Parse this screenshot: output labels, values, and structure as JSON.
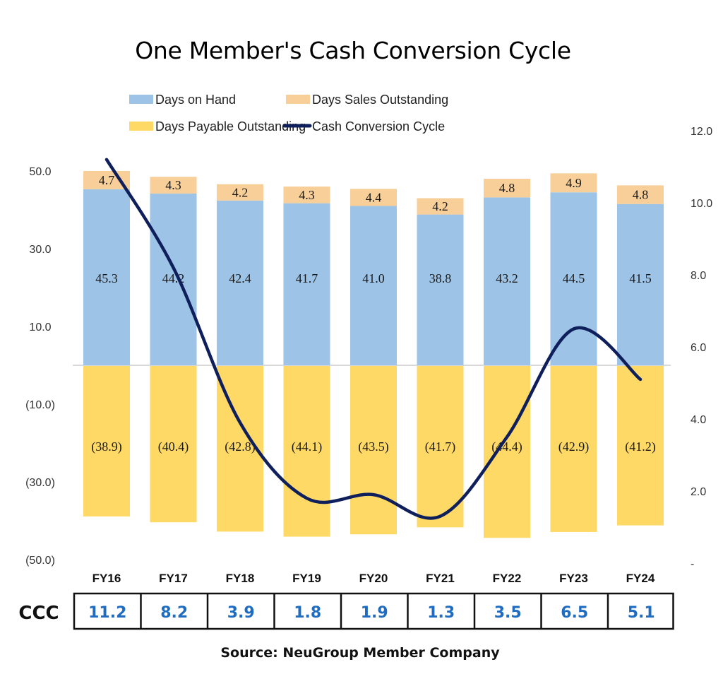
{
  "chart_data": {
    "type": "bar",
    "title": "One Member's Cash Conversion Cycle",
    "source": "Source: NeuGroup Member Company",
    "categories": [
      "FY16",
      "FY17",
      "FY18",
      "FY19",
      "FY20",
      "FY21",
      "FY22",
      "FY23",
      "FY24"
    ],
    "series": [
      {
        "name": "Days on Hand",
        "kind": "stacked-bar",
        "axis": "left",
        "color": "#9DC3E6",
        "values": [
          45.3,
          44.2,
          42.4,
          41.7,
          41.0,
          38.8,
          43.2,
          44.5,
          41.5
        ],
        "labels": [
          "45.3",
          "44.2",
          "42.4",
          "41.7",
          "41.0",
          "38.8",
          "43.2",
          "44.5",
          "41.5"
        ]
      },
      {
        "name": "Days Sales Outstanding",
        "kind": "stacked-bar",
        "axis": "left",
        "color": "#F8CF98",
        "values": [
          4.7,
          4.3,
          4.2,
          4.3,
          4.4,
          4.2,
          4.8,
          4.9,
          4.8
        ],
        "labels": [
          "4.7",
          "4.3",
          "4.2",
          "4.3",
          "4.4",
          "4.2",
          "4.8",
          "4.9",
          "4.8"
        ]
      },
      {
        "name": "Days Payable Outstanding",
        "kind": "stacked-bar",
        "axis": "left",
        "color": "#FFD966",
        "values": [
          -38.9,
          -40.4,
          -42.8,
          -44.1,
          -43.5,
          -41.7,
          -44.4,
          -42.9,
          -41.2
        ],
        "labels": [
          "(38.9)",
          "(40.4)",
          "(42.8)",
          "(44.1)",
          "(43.5)",
          "(41.7)",
          "(44.4)",
          "(42.9)",
          "(41.2)"
        ]
      },
      {
        "name": "Cash Conversion Cycle",
        "kind": "line",
        "axis": "right",
        "color": "#0F1F5C",
        "values": [
          11.2,
          8.2,
          3.9,
          1.8,
          1.9,
          1.3,
          3.5,
          6.5,
          5.1
        ]
      }
    ],
    "left_axis": {
      "ylim": [
        -50,
        50
      ],
      "ticks": [
        50,
        30,
        10,
        -10,
        -30,
        -50
      ],
      "tick_labels": [
        "50.0",
        "30.0",
        "10.0",
        "(10.0)",
        "(30.0)",
        "(50.0)"
      ]
    },
    "right_axis": {
      "ylim": [
        0,
        12
      ],
      "ticks": [
        12,
        10,
        8,
        6,
        4,
        2,
        0
      ],
      "tick_labels": [
        "12.0",
        "10.0",
        "8.0",
        "6.0",
        "4.0",
        "2.0",
        "-"
      ]
    },
    "legend": {
      "placement": "top",
      "entries": [
        "Days on Hand",
        "Days Sales Outstanding",
        "Days Payable Outstanding",
        "Cash Conversion Cycle"
      ]
    },
    "grid": false,
    "ccc_table": {
      "header": "CCC",
      "values": [
        "11.2",
        "8.2",
        "3.9",
        "1.8",
        "1.9",
        "1.3",
        "3.5",
        "6.5",
        "5.1"
      ]
    }
  }
}
